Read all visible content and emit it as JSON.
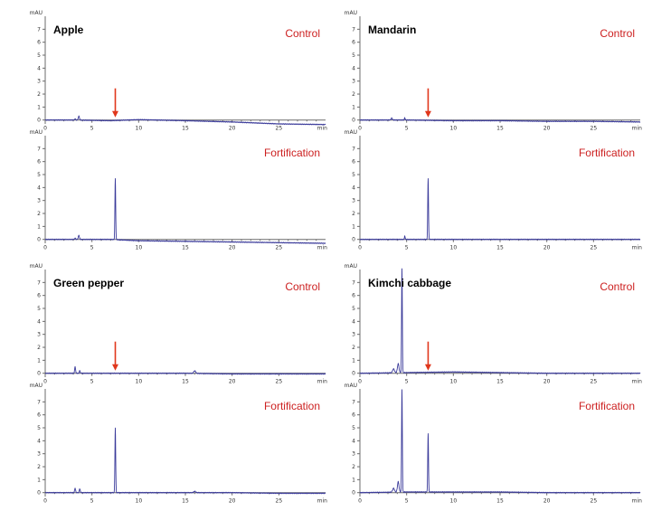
{
  "chart_data": [
    {
      "type": "line",
      "sample": "Apple",
      "condition": "Control",
      "ylabel": "mAU",
      "xlabel": "min",
      "xlim": [
        0,
        30
      ],
      "ylim": [
        -0.3,
        8
      ],
      "xticks": [
        "0",
        "5",
        "10",
        "15",
        "20",
        "25"
      ],
      "yticks": [
        "0",
        "1",
        "2",
        "3",
        "4",
        "5",
        "6",
        "7"
      ],
      "baseline": [
        [
          0,
          0.0
        ],
        [
          3,
          0.0
        ],
        [
          7,
          -0.05
        ],
        [
          10,
          0.03
        ],
        [
          15,
          -0.05
        ],
        [
          20,
          -0.15
        ],
        [
          25,
          -0.3
        ],
        [
          30,
          -0.35
        ]
      ],
      "peaks": [
        {
          "rt": 3.6,
          "height": 0.3,
          "width": 0.2
        },
        {
          "rt": 3.2,
          "height": 0.1,
          "width": 0.15
        }
      ],
      "arrow_rt": 7.5
    },
    {
      "type": "line",
      "sample": "Apple",
      "condition": "Fortification",
      "ylabel": "mAU",
      "xlabel": "min",
      "xlim": [
        0,
        30
      ],
      "ylim": [
        -0.3,
        8
      ],
      "xticks": [
        "0",
        "5",
        "10",
        "15",
        "20",
        "25"
      ],
      "yticks": [
        "0",
        "1",
        "2",
        "3",
        "4",
        "5",
        "6",
        "7"
      ],
      "baseline": [
        [
          0,
          0.0
        ],
        [
          3,
          0.0
        ],
        [
          7,
          0.0
        ],
        [
          10,
          -0.1
        ],
        [
          15,
          -0.15
        ],
        [
          20,
          -0.2
        ],
        [
          25,
          -0.25
        ],
        [
          30,
          -0.3
        ]
      ],
      "peaks": [
        {
          "rt": 7.5,
          "height": 4.7,
          "width": 0.12
        },
        {
          "rt": 3.6,
          "height": 0.3,
          "width": 0.2
        },
        {
          "rt": 3.2,
          "height": 0.1,
          "width": 0.15
        }
      ]
    },
    {
      "type": "line",
      "sample": "Mandarin",
      "condition": "Control",
      "ylabel": "mAU",
      "xlabel": "min",
      "xlim": [
        0,
        30
      ],
      "ylim": [
        -0.3,
        8
      ],
      "xticks": [
        "0",
        "5",
        "10",
        "15",
        "20",
        "25"
      ],
      "yticks": [
        "0",
        "1",
        "2",
        "3",
        "4",
        "5",
        "6",
        "7"
      ],
      "baseline": [
        [
          0,
          0.0
        ],
        [
          5,
          0.0
        ],
        [
          10,
          -0.05
        ],
        [
          15,
          -0.05
        ],
        [
          20,
          -0.1
        ],
        [
          25,
          -0.1
        ],
        [
          30,
          -0.15
        ]
      ],
      "peaks": [
        {
          "rt": 3.4,
          "height": 0.15,
          "width": 0.2
        },
        {
          "rt": 4.8,
          "height": 0.2,
          "width": 0.1
        }
      ],
      "arrow_rt": 7.3
    },
    {
      "type": "line",
      "sample": "Mandarin",
      "condition": "Fortification",
      "ylabel": "mAU",
      "xlabel": "min",
      "xlim": [
        0,
        30
      ],
      "ylim": [
        -0.3,
        8
      ],
      "xticks": [
        "0",
        "5",
        "10",
        "15",
        "20",
        "25"
      ],
      "yticks": [
        "0",
        "1",
        "2",
        "3",
        "4",
        "5",
        "6",
        "7"
      ],
      "baseline": [
        [
          0,
          0.0
        ],
        [
          5,
          0.0
        ],
        [
          10,
          0.0
        ],
        [
          15,
          0.0
        ],
        [
          20,
          0.0
        ],
        [
          25,
          0.0
        ],
        [
          30,
          0.0
        ]
      ],
      "peaks": [
        {
          "rt": 7.3,
          "height": 4.7,
          "width": 0.12
        },
        {
          "rt": 4.8,
          "height": 0.3,
          "width": 0.1
        }
      ]
    },
    {
      "type": "line",
      "sample": "Green pepper",
      "condition": "Control",
      "ylabel": "mAU",
      "xlabel": "min",
      "xlim": [
        0,
        30
      ],
      "ylim": [
        -0.3,
        8
      ],
      "xticks": [
        "0",
        "5",
        "10",
        "15",
        "20",
        "25"
      ],
      "yticks": [
        "0",
        "1",
        "2",
        "3",
        "4",
        "5",
        "6",
        "7"
      ],
      "baseline": [
        [
          0,
          0.0
        ],
        [
          5,
          0.0
        ],
        [
          10,
          0.0
        ],
        [
          15,
          0.0
        ],
        [
          20,
          -0.05
        ],
        [
          25,
          -0.05
        ],
        [
          30,
          -0.05
        ]
      ],
      "peaks": [
        {
          "rt": 3.2,
          "height": 0.5,
          "width": 0.15
        },
        {
          "rt": 3.7,
          "height": 0.2,
          "width": 0.15
        },
        {
          "rt": 16,
          "height": 0.2,
          "width": 0.3
        }
      ],
      "arrow_rt": 7.5
    },
    {
      "type": "line",
      "sample": "Green pepper",
      "condition": "Fortification",
      "ylabel": "mAU",
      "xlabel": "min",
      "xlim": [
        0,
        30
      ],
      "ylim": [
        -0.3,
        8
      ],
      "xticks": [
        "0",
        "5",
        "10",
        "15",
        "20",
        "25"
      ],
      "yticks": [
        "0",
        "1",
        "2",
        "3",
        "4",
        "5",
        "6",
        "7"
      ],
      "baseline": [
        [
          0,
          0.0
        ],
        [
          5,
          0.0
        ],
        [
          10,
          0.0
        ],
        [
          15,
          0.0
        ],
        [
          20,
          0.0
        ],
        [
          25,
          -0.05
        ],
        [
          30,
          -0.05
        ]
      ],
      "peaks": [
        {
          "rt": 7.5,
          "height": 5.0,
          "width": 0.12
        },
        {
          "rt": 3.2,
          "height": 0.35,
          "width": 0.15
        },
        {
          "rt": 3.7,
          "height": 0.3,
          "width": 0.15
        },
        {
          "rt": 16,
          "height": 0.1,
          "width": 0.3
        }
      ]
    },
    {
      "type": "line",
      "sample": "Kimchi cabbage",
      "condition": "Control",
      "ylabel": "mAU",
      "xlabel": "min",
      "xlim": [
        0,
        30
      ],
      "ylim": [
        -0.3,
        8
      ],
      "xticks": [
        "0",
        "5",
        "10",
        "15",
        "20",
        "25"
      ],
      "yticks": [
        "0",
        "1",
        "2",
        "3",
        "4",
        "5",
        "6",
        "7"
      ],
      "baseline": [
        [
          0,
          0.0
        ],
        [
          5,
          0.05
        ],
        [
          10,
          0.1
        ],
        [
          15,
          0.05
        ],
        [
          20,
          0.0
        ],
        [
          25,
          0.0
        ],
        [
          30,
          0.0
        ]
      ],
      "peaks": [
        {
          "rt": 4.5,
          "height": 8.0,
          "width": 0.12
        },
        {
          "rt": 4.1,
          "height": 0.7,
          "width": 0.25
        },
        {
          "rt": 3.6,
          "height": 0.3,
          "width": 0.3
        }
      ],
      "arrow_rt": 7.3
    },
    {
      "type": "line",
      "sample": "Kimchi cabbage",
      "condition": "Fortification",
      "ylabel": "mAU",
      "xlabel": "min",
      "xlim": [
        0,
        30
      ],
      "ylim": [
        -0.3,
        8
      ],
      "xticks": [
        "0",
        "5",
        "10",
        "15",
        "20",
        "25"
      ],
      "yticks": [
        "0",
        "1",
        "2",
        "3",
        "4",
        "5",
        "6",
        "7"
      ],
      "baseline": [
        [
          0,
          0.0
        ],
        [
          5,
          0.05
        ],
        [
          10,
          0.05
        ],
        [
          15,
          0.05
        ],
        [
          20,
          0.0
        ],
        [
          25,
          0.0
        ],
        [
          30,
          0.0
        ]
      ],
      "peaks": [
        {
          "rt": 4.5,
          "height": 7.9,
          "width": 0.12
        },
        {
          "rt": 4.1,
          "height": 0.8,
          "width": 0.25
        },
        {
          "rt": 3.6,
          "height": 0.3,
          "width": 0.3
        },
        {
          "rt": 7.3,
          "height": 4.5,
          "width": 0.12
        }
      ]
    }
  ]
}
